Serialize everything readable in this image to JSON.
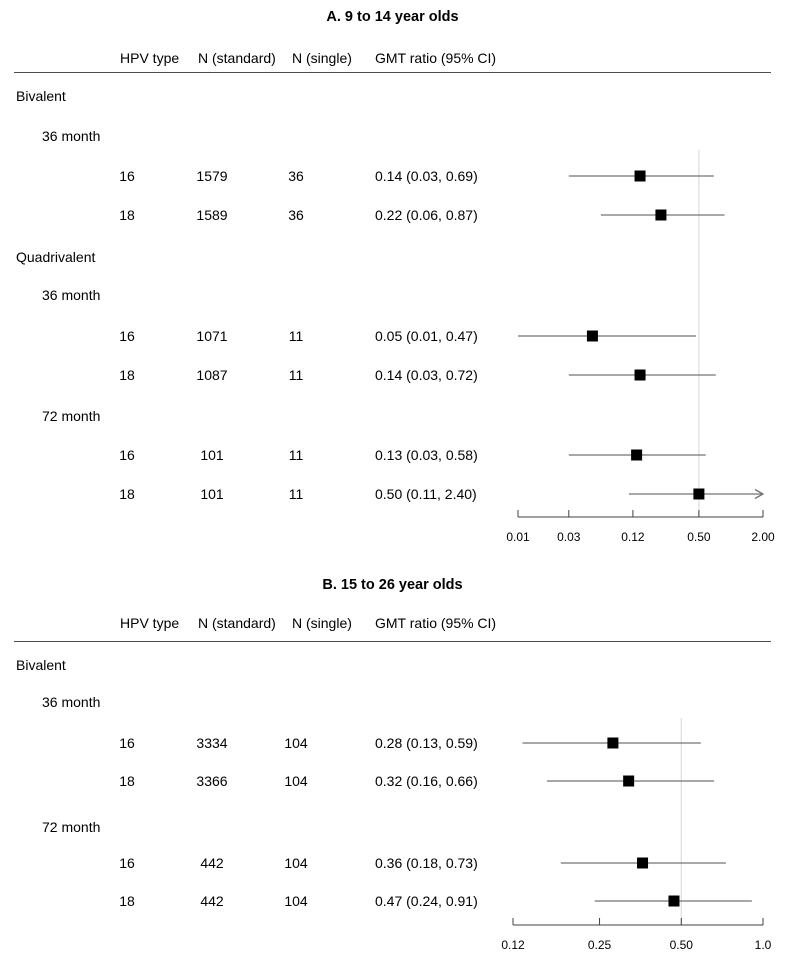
{
  "styles": {
    "background": "#ffffff",
    "text_color": "#000000",
    "marker_color": "#000000",
    "ci_line_color": "#737373",
    "reference_line_color": "#dcdcdc",
    "axis_color": "#404040",
    "header_rule_color": "#4d4d4d"
  },
  "chart_data": [
    {
      "type": "scatter",
      "variant": "forest-plot",
      "title": "A. 9 to 14 year olds",
      "columns": [
        "HPV type",
        "N (standard)",
        "N (single)",
        "GMT ratio (95% CI)"
      ],
      "xscale": "log",
      "xlim": [
        0.01,
        2.0
      ],
      "xticks": [
        "0.01",
        "0.03",
        "0.12",
        "0.50",
        "2.00"
      ],
      "xtick_values": [
        0.01,
        0.03,
        0.12,
        0.5,
        2.0
      ],
      "reference_line": 0.5,
      "legend": "none",
      "grid": "off",
      "rows": [
        {
          "kind": "group",
          "label": "Bivalent"
        },
        {
          "kind": "subgroup",
          "label": "36 month"
        },
        {
          "kind": "data",
          "hpv_type": "16",
          "n_standard": "1579",
          "n_single": "36",
          "gmt_ratio": "0.14 (0.03, 0.69)",
          "estimate": 0.14,
          "ci_lower": 0.03,
          "ci_upper": 0.69
        },
        {
          "kind": "data",
          "hpv_type": "18",
          "n_standard": "1589",
          "n_single": "36",
          "gmt_ratio": "0.22 (0.06, 0.87)",
          "estimate": 0.22,
          "ci_lower": 0.06,
          "ci_upper": 0.87
        },
        {
          "kind": "group",
          "label": "Quadrivalent"
        },
        {
          "kind": "subgroup",
          "label": "36 month"
        },
        {
          "kind": "data",
          "hpv_type": "16",
          "n_standard": "1071",
          "n_single": "11",
          "gmt_ratio": "0.05 (0.01, 0.47)",
          "estimate": 0.05,
          "ci_lower": 0.01,
          "ci_upper": 0.47
        },
        {
          "kind": "data",
          "hpv_type": "18",
          "n_standard": "1087",
          "n_single": "11",
          "gmt_ratio": "0.14 (0.03, 0.72)",
          "estimate": 0.14,
          "ci_lower": 0.03,
          "ci_upper": 0.72
        },
        {
          "kind": "subgroup",
          "label": "72 month"
        },
        {
          "kind": "data",
          "hpv_type": "16",
          "n_standard": "101",
          "n_single": "11",
          "gmt_ratio": "0.13 (0.03, 0.58)",
          "estimate": 0.13,
          "ci_lower": 0.03,
          "ci_upper": 0.58
        },
        {
          "kind": "data",
          "hpv_type": "18",
          "n_standard": "101",
          "n_single": "11",
          "gmt_ratio": "0.50 (0.11, 2.40)",
          "estimate": 0.5,
          "ci_lower": 0.11,
          "ci_upper": 2.4
        }
      ]
    },
    {
      "type": "scatter",
      "variant": "forest-plot",
      "title": "B. 15 to 26 year olds",
      "columns": [
        "HPV type",
        "N (standard)",
        "N (single)",
        "GMT ratio (95% CI)"
      ],
      "xscale": "log",
      "xlim": [
        0.12,
        1.0
      ],
      "xticks": [
        "0.12",
        "0.25",
        "0.50",
        "1.0"
      ],
      "xtick_values": [
        0.12,
        0.25,
        0.5,
        1.0
      ],
      "reference_line": 0.5,
      "legend": "none",
      "grid": "off",
      "rows": [
        {
          "kind": "group",
          "label": "Bivalent"
        },
        {
          "kind": "subgroup",
          "label": "36 month"
        },
        {
          "kind": "data",
          "hpv_type": "16",
          "n_standard": "3334",
          "n_single": "104",
          "gmt_ratio": "0.28 (0.13, 0.59)",
          "estimate": 0.28,
          "ci_lower": 0.13,
          "ci_upper": 0.59
        },
        {
          "kind": "data",
          "hpv_type": "18",
          "n_standard": "3366",
          "n_single": "104",
          "gmt_ratio": "0.32 (0.16, 0.66)",
          "estimate": 0.32,
          "ci_lower": 0.16,
          "ci_upper": 0.66
        },
        {
          "kind": "subgroup",
          "label": "72 month"
        },
        {
          "kind": "data",
          "hpv_type": "16",
          "n_standard": "442",
          "n_single": "104",
          "gmt_ratio": "0.36 (0.18, 0.73)",
          "estimate": 0.36,
          "ci_lower": 0.18,
          "ci_upper": 0.73
        },
        {
          "kind": "data",
          "hpv_type": "18",
          "n_standard": "442",
          "n_single": "104",
          "gmt_ratio": "0.47 (0.24, 0.91)",
          "estimate": 0.47,
          "ci_lower": 0.24,
          "ci_upper": 0.91
        }
      ]
    }
  ]
}
